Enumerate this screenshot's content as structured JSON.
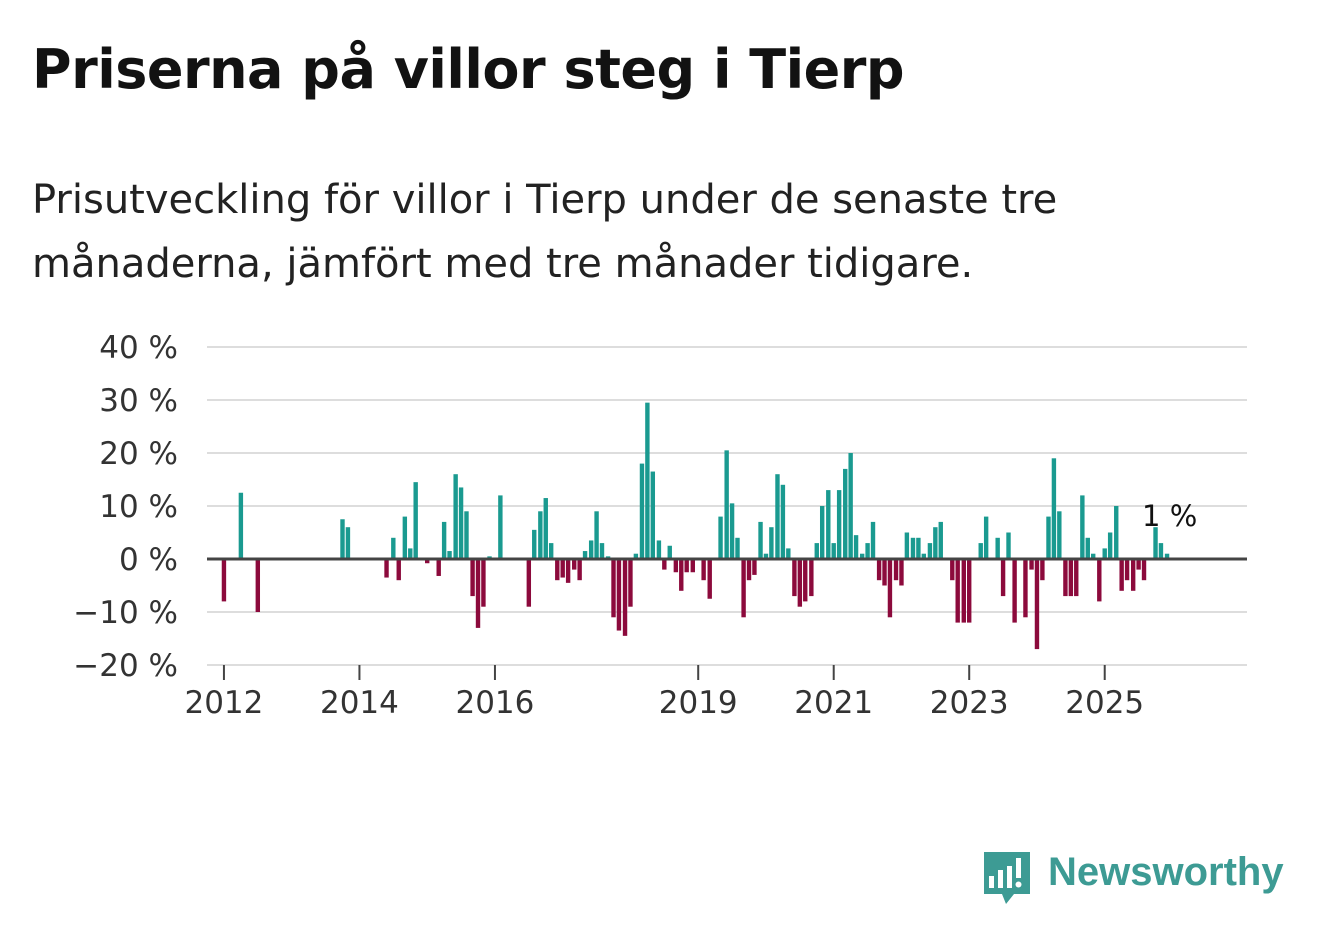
{
  "title": "Priserna på villor steg i Tierp",
  "subtitle": "Prisutveckling för villor i Tierp under de senaste tre månaderna, jämfört med tre månader tidigare.",
  "logo_text": "Newsworthy",
  "colors": {
    "positive": "#1a9a90",
    "negative": "#8c0a3c",
    "grid": "#dddddd",
    "zero": "#444444"
  },
  "chart_data": {
    "type": "bar",
    "title": "Priserna på villor steg i Tierp",
    "xlabel": "",
    "ylabel": "",
    "ylim": [
      -20,
      40
    ],
    "y_ticks": [
      {
        "value": 40,
        "label": "40 %"
      },
      {
        "value": 30,
        "label": "30 %"
      },
      {
        "value": 20,
        "label": "20 %"
      },
      {
        "value": 10,
        "label": "10 %"
      },
      {
        "value": 0,
        "label": "0 %"
      },
      {
        "value": -10,
        "label": "−10 %"
      },
      {
        "value": -20,
        "label": "−20 %"
      }
    ],
    "x_start": 2011.75,
    "x_end": 2027.1,
    "x_ticks": [
      {
        "value": 2012,
        "label": "2012"
      },
      {
        "value": 2014,
        "label": "2014"
      },
      {
        "value": 2016,
        "label": "2016"
      },
      {
        "value": 2019,
        "label": "2019"
      },
      {
        "value": 2021,
        "label": "2021"
      },
      {
        "value": 2023,
        "label": "2023"
      },
      {
        "value": 2025,
        "label": "2025"
      }
    ],
    "series": [
      {
        "name": "Prisutveckling",
        "points": [
          {
            "x": 2012.0,
            "y": -8
          },
          {
            "x": 2012.25,
            "y": 12.5
          },
          {
            "x": 2012.5,
            "y": -10
          },
          {
            "x": 2013.75,
            "y": 7.5
          },
          {
            "x": 2013.83,
            "y": 6
          },
          {
            "x": 2014.4,
            "y": -3.5
          },
          {
            "x": 2014.5,
            "y": 4
          },
          {
            "x": 2014.58,
            "y": -4
          },
          {
            "x": 2014.67,
            "y": 8
          },
          {
            "x": 2014.75,
            "y": 2
          },
          {
            "x": 2014.83,
            "y": 14.5
          },
          {
            "x": 2015.0,
            "y": -0.8
          },
          {
            "x": 2015.17,
            "y": -3.2
          },
          {
            "x": 2015.25,
            "y": 7
          },
          {
            "x": 2015.33,
            "y": 1.5
          },
          {
            "x": 2015.42,
            "y": 16
          },
          {
            "x": 2015.5,
            "y": 13.5
          },
          {
            "x": 2015.58,
            "y": 9
          },
          {
            "x": 2015.67,
            "y": -7
          },
          {
            "x": 2015.75,
            "y": -13
          },
          {
            "x": 2015.83,
            "y": -9
          },
          {
            "x": 2015.92,
            "y": 0.5
          },
          {
            "x": 2016.08,
            "y": 12
          },
          {
            "x": 2016.5,
            "y": -9
          },
          {
            "x": 2016.58,
            "y": 5.5
          },
          {
            "x": 2016.67,
            "y": 9
          },
          {
            "x": 2016.75,
            "y": 11.5
          },
          {
            "x": 2016.83,
            "y": 3
          },
          {
            "x": 2016.92,
            "y": -4
          },
          {
            "x": 2017.0,
            "y": -3.5
          },
          {
            "x": 2017.08,
            "y": -4.5
          },
          {
            "x": 2017.17,
            "y": -2
          },
          {
            "x": 2017.25,
            "y": -4
          },
          {
            "x": 2017.33,
            "y": 1.5
          },
          {
            "x": 2017.42,
            "y": 3.5
          },
          {
            "x": 2017.5,
            "y": 9
          },
          {
            "x": 2017.58,
            "y": 3
          },
          {
            "x": 2017.67,
            "y": 0.5
          },
          {
            "x": 2017.75,
            "y": -11
          },
          {
            "x": 2017.83,
            "y": -13.5
          },
          {
            "x": 2017.92,
            "y": -14.5
          },
          {
            "x": 2018.0,
            "y": -9
          },
          {
            "x": 2018.08,
            "y": 1
          },
          {
            "x": 2018.17,
            "y": 18
          },
          {
            "x": 2018.25,
            "y": 29.5
          },
          {
            "x": 2018.33,
            "y": 16.5
          },
          {
            "x": 2018.42,
            "y": 3.5
          },
          {
            "x": 2018.5,
            "y": -2
          },
          {
            "x": 2018.58,
            "y": 2.5
          },
          {
            "x": 2018.67,
            "y": -2.5
          },
          {
            "x": 2018.75,
            "y": -6
          },
          {
            "x": 2018.83,
            "y": -2.5
          },
          {
            "x": 2018.92,
            "y": -2.5
          },
          {
            "x": 2019.08,
            "y": -4
          },
          {
            "x": 2019.17,
            "y": -7.5
          },
          {
            "x": 2019.33,
            "y": 8
          },
          {
            "x": 2019.42,
            "y": 20.5
          },
          {
            "x": 2019.5,
            "y": 10.5
          },
          {
            "x": 2019.58,
            "y": 4
          },
          {
            "x": 2019.67,
            "y": -11
          },
          {
            "x": 2019.75,
            "y": -4
          },
          {
            "x": 2019.83,
            "y": -3
          },
          {
            "x": 2019.92,
            "y": 7
          },
          {
            "x": 2020.0,
            "y": 1
          },
          {
            "x": 2020.08,
            "y": 6
          },
          {
            "x": 2020.17,
            "y": 16
          },
          {
            "x": 2020.25,
            "y": 14
          },
          {
            "x": 2020.33,
            "y": 2
          },
          {
            "x": 2020.42,
            "y": -7
          },
          {
            "x": 2020.5,
            "y": -9
          },
          {
            "x": 2020.58,
            "y": -8
          },
          {
            "x": 2020.67,
            "y": -7
          },
          {
            "x": 2020.75,
            "y": 3
          },
          {
            "x": 2020.83,
            "y": 10
          },
          {
            "x": 2020.92,
            "y": 13
          },
          {
            "x": 2021.0,
            "y": 3
          },
          {
            "x": 2021.08,
            "y": 13
          },
          {
            "x": 2021.17,
            "y": 17
          },
          {
            "x": 2021.25,
            "y": 20
          },
          {
            "x": 2021.33,
            "y": 4.5
          },
          {
            "x": 2021.42,
            "y": 1
          },
          {
            "x": 2021.5,
            "y": 3
          },
          {
            "x": 2021.58,
            "y": 7
          },
          {
            "x": 2021.67,
            "y": -4
          },
          {
            "x": 2021.75,
            "y": -5
          },
          {
            "x": 2021.83,
            "y": -11
          },
          {
            "x": 2021.92,
            "y": -4
          },
          {
            "x": 2022.0,
            "y": -5
          },
          {
            "x": 2022.08,
            "y": 5
          },
          {
            "x": 2022.17,
            "y": 4
          },
          {
            "x": 2022.25,
            "y": 4
          },
          {
            "x": 2022.33,
            "y": 1
          },
          {
            "x": 2022.42,
            "y": 3
          },
          {
            "x": 2022.5,
            "y": 6
          },
          {
            "x": 2022.58,
            "y": 7
          },
          {
            "x": 2022.75,
            "y": -4
          },
          {
            "x": 2022.83,
            "y": -12
          },
          {
            "x": 2022.92,
            "y": -12
          },
          {
            "x": 2023.0,
            "y": -12
          },
          {
            "x": 2023.17,
            "y": 3
          },
          {
            "x": 2023.25,
            "y": 8
          },
          {
            "x": 2023.42,
            "y": 4
          },
          {
            "x": 2023.5,
            "y": -7
          },
          {
            "x": 2023.58,
            "y": 5
          },
          {
            "x": 2023.67,
            "y": -12
          },
          {
            "x": 2023.83,
            "y": -11
          },
          {
            "x": 2023.92,
            "y": -2
          },
          {
            "x": 2024.0,
            "y": -17
          },
          {
            "x": 2024.08,
            "y": -4
          },
          {
            "x": 2024.17,
            "y": 8
          },
          {
            "x": 2024.25,
            "y": 19
          },
          {
            "x": 2024.33,
            "y": 9
          },
          {
            "x": 2024.42,
            "y": -7
          },
          {
            "x": 2024.5,
            "y": -7
          },
          {
            "x": 2024.58,
            "y": -7
          },
          {
            "x": 2024.67,
            "y": 12
          },
          {
            "x": 2024.75,
            "y": 4
          },
          {
            "x": 2024.83,
            "y": 1
          },
          {
            "x": 2024.92,
            "y": -8
          },
          {
            "x": 2025.0,
            "y": 2
          },
          {
            "x": 2025.08,
            "y": 5
          },
          {
            "x": 2025.17,
            "y": 10
          },
          {
            "x": 2025.25,
            "y": -6
          },
          {
            "x": 2025.33,
            "y": -4
          },
          {
            "x": 2025.42,
            "y": -6
          },
          {
            "x": 2025.5,
            "y": -2
          },
          {
            "x": 2025.58,
            "y": -4
          },
          {
            "x": 2025.75,
            "y": 6
          },
          {
            "x": 2025.83,
            "y": 3
          },
          {
            "x": 2025.92,
            "y": 1
          }
        ]
      }
    ],
    "annotation": {
      "x": 2025.92,
      "y": 1,
      "label": "1 %"
    }
  }
}
